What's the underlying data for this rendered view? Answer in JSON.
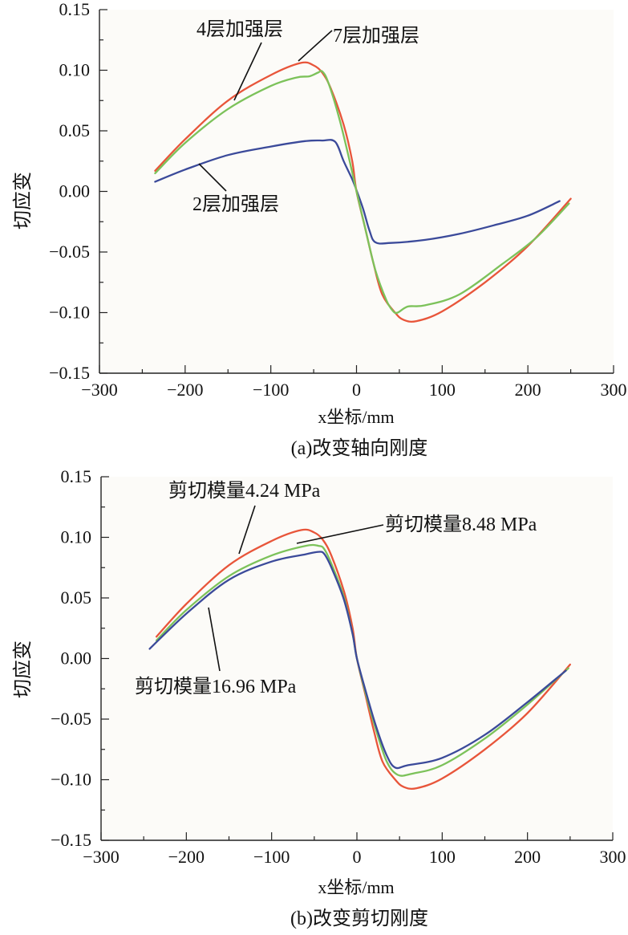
{
  "chart_data": [
    {
      "type": "line",
      "xlabel": "x坐标/mm",
      "ylabel": "切应变",
      "caption": "(a)改变轴向刚度",
      "xlim": [
        -300,
        300
      ],
      "ylim": [
        -0.15,
        0.15
      ],
      "xticks": [
        "−300",
        "−200",
        "−100",
        "0",
        "100",
        "200",
        "300"
      ],
      "yticks": [
        "0.15",
        "0.10",
        "0.05",
        "0.00",
        "−0.05",
        "−0.10",
        "−0.15"
      ],
      "series": [
        {
          "name": "2层加强层",
          "color": "#3b4a9a",
          "points": [
            [
              -235,
              0.008
            ],
            [
              -200,
              0.018
            ],
            [
              -150,
              0.03
            ],
            [
              -100,
              0.037
            ],
            [
              -60,
              0.0415
            ],
            [
              -40,
              0.042
            ],
            [
              -25,
              0.041
            ],
            [
              -15,
              0.025
            ],
            [
              -5,
              0.01
            ],
            [
              0,
              0.001
            ],
            [
              8,
              -0.015
            ],
            [
              15,
              -0.032
            ],
            [
              22,
              -0.042
            ],
            [
              40,
              -0.0425
            ],
            [
              80,
              -0.04
            ],
            [
              120,
              -0.035
            ],
            [
              160,
              -0.028
            ],
            [
              200,
              -0.02
            ],
            [
              237,
              -0.008
            ]
          ]
        },
        {
          "name": "4层加强层",
          "color": "#e8553a",
          "points": [
            [
              -235,
              0.017
            ],
            [
              -200,
              0.043
            ],
            [
              -150,
              0.075
            ],
            [
              -100,
              0.096
            ],
            [
              -65,
              0.106
            ],
            [
              -50,
              0.104
            ],
            [
              -40,
              0.098
            ],
            [
              -30,
              0.085
            ],
            [
              -15,
              0.055
            ],
            [
              -5,
              0.025
            ],
            [
              0,
              0.0
            ],
            [
              10,
              -0.03
            ],
            [
              20,
              -0.06
            ],
            [
              30,
              -0.085
            ],
            [
              45,
              -0.1
            ],
            [
              55,
              -0.106
            ],
            [
              70,
              -0.107
            ],
            [
              100,
              -0.099
            ],
            [
              150,
              -0.075
            ],
            [
              200,
              -0.045
            ],
            [
              250,
              -0.006
            ]
          ]
        },
        {
          "name": "7层加强层",
          "color": "#7cc25a",
          "points": [
            [
              -235,
              0.015
            ],
            [
              -200,
              0.04
            ],
            [
              -150,
              0.068
            ],
            [
              -100,
              0.087
            ],
            [
              -70,
              0.094
            ],
            [
              -55,
              0.095
            ],
            [
              -45,
              0.098
            ],
            [
              -40,
              0.099
            ],
            [
              -33,
              0.09
            ],
            [
              -20,
              0.06
            ],
            [
              -8,
              0.025
            ],
            [
              0,
              0.0
            ],
            [
              10,
              -0.03
            ],
            [
              22,
              -0.065
            ],
            [
              35,
              -0.09
            ],
            [
              43,
              -0.099
            ],
            [
              48,
              -0.1
            ],
            [
              60,
              -0.095
            ],
            [
              80,
              -0.094
            ],
            [
              120,
              -0.085
            ],
            [
              170,
              -0.06
            ],
            [
              210,
              -0.038
            ],
            [
              248,
              -0.01
            ]
          ]
        }
      ],
      "annotations": [
        {
          "text": "4层加强层"
        },
        {
          "text": "7层加强层"
        },
        {
          "text": "2层加强层"
        }
      ]
    },
    {
      "type": "line",
      "xlabel": "x坐标/mm",
      "ylabel": "切应变",
      "caption": "(b)改变剪切刚度",
      "xlim": [
        -300,
        300
      ],
      "ylim": [
        -0.15,
        0.15
      ],
      "xticks": [
        "−300",
        "−200",
        "−100",
        "0",
        "100",
        "200",
        "300"
      ],
      "yticks": [
        "0.15",
        "0.10",
        "0.05",
        "0.00",
        "−0.05",
        "−0.10",
        "−0.15"
      ],
      "series": [
        {
          "name": "剪切模量4.24 MPa",
          "color": "#e8553a",
          "points": [
            [
              -235,
              0.018
            ],
            [
              -200,
              0.045
            ],
            [
              -150,
              0.077
            ],
            [
              -100,
              0.097
            ],
            [
              -65,
              0.106
            ],
            [
              -50,
              0.104
            ],
            [
              -40,
              0.098
            ],
            [
              -30,
              0.085
            ],
            [
              -15,
              0.055
            ],
            [
              -5,
              0.025
            ],
            [
              0,
              0.0
            ],
            [
              10,
              -0.03
            ],
            [
              20,
              -0.06
            ],
            [
              30,
              -0.085
            ],
            [
              45,
              -0.1
            ],
            [
              55,
              -0.106
            ],
            [
              70,
              -0.107
            ],
            [
              100,
              -0.099
            ],
            [
              150,
              -0.075
            ],
            [
              200,
              -0.045
            ],
            [
              250,
              -0.005
            ]
          ]
        },
        {
          "name": "剪切模量8.48 MPa",
          "color": "#7cc25a",
          "points": [
            [
              -235,
              0.015
            ],
            [
              -200,
              0.04
            ],
            [
              -150,
              0.068
            ],
            [
              -100,
              0.085
            ],
            [
              -60,
              0.093
            ],
            [
              -45,
              0.093
            ],
            [
              -38,
              0.09
            ],
            [
              -28,
              0.075
            ],
            [
              -15,
              0.05
            ],
            [
              -5,
              0.02
            ],
            [
              0,
              0.0
            ],
            [
              10,
              -0.028
            ],
            [
              22,
              -0.058
            ],
            [
              35,
              -0.085
            ],
            [
              48,
              -0.096
            ],
            [
              65,
              -0.095
            ],
            [
              100,
              -0.088
            ],
            [
              150,
              -0.066
            ],
            [
              200,
              -0.038
            ],
            [
              248,
              -0.008
            ]
          ]
        },
        {
          "name": "剪切模量16.96 MPa",
          "color": "#3b4a9a",
          "points": [
            [
              -243,
              0.008
            ],
            [
              -200,
              0.037
            ],
            [
              -150,
              0.065
            ],
            [
              -100,
              0.08
            ],
            [
              -60,
              0.086
            ],
            [
              -45,
              0.088
            ],
            [
              -38,
              0.086
            ],
            [
              -28,
              0.072
            ],
            [
              -15,
              0.048
            ],
            [
              -5,
              0.02
            ],
            [
              0,
              0.0
            ],
            [
              10,
              -0.026
            ],
            [
              22,
              -0.055
            ],
            [
              35,
              -0.08
            ],
            [
              45,
              -0.09
            ],
            [
              60,
              -0.088
            ],
            [
              100,
              -0.082
            ],
            [
              150,
              -0.063
            ],
            [
              200,
              -0.036
            ],
            [
              245,
              -0.01
            ]
          ]
        }
      ],
      "annotations": [
        {
          "text": "剪切模量4.24 MPa"
        },
        {
          "text": "剪切模量8.48 MPa"
        },
        {
          "text": "剪切模量16.96 MPa"
        }
      ]
    }
  ]
}
